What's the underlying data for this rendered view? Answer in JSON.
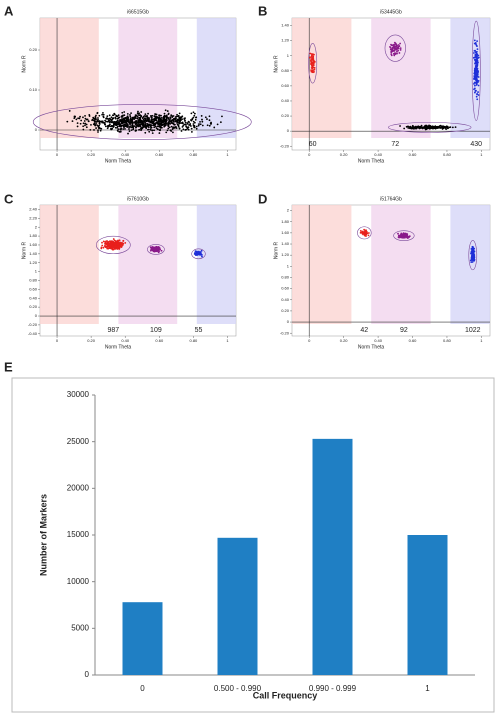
{
  "chart_data": [
    {
      "type": "scatter",
      "panel": "A",
      "title": "i66515Gb",
      "x_label": "Norm Theta",
      "y_label": "Norm R",
      "xlim": [
        -0.1,
        1.05
      ],
      "xticks": [
        0,
        {
          "value": 0.2,
          "label": "0.20"
        },
        {
          "value": 0.4,
          "label": "0.40"
        },
        {
          "value": 0.6,
          "label": "0.60"
        },
        {
          "value": 0.8,
          "label": "0.80"
        },
        1
      ],
      "ylim": [
        -0.05,
        0.28
      ],
      "yticks": [
        0,
        {
          "value": 0.1,
          "label": "0.10"
        },
        {
          "value": 0.2,
          "label": "0.20"
        }
      ],
      "clusters": [
        {
          "x": 0.5,
          "y": 0.02,
          "color": "#000000"
        }
      ]
    },
    {
      "type": "scatter",
      "panel": "B",
      "title": "i53445Gb",
      "x_label": "Norm Theta",
      "y_label": "Norm R",
      "xlim": [
        -0.1,
        1.05
      ],
      "xticks": [
        0,
        {
          "value": 0.2,
          "label": "0.20"
        },
        {
          "value": 0.4,
          "label": "0.40"
        },
        {
          "value": 0.6,
          "label": "0.60"
        },
        {
          "value": 0.8,
          "label": "0.80"
        },
        1
      ],
      "ylim": [
        -0.25,
        1.5
      ],
      "yticks": [
        {
          "value": -0.2,
          "label": "-0.20"
        },
        0,
        {
          "value": 0.2,
          "label": "0.20"
        },
        {
          "value": 0.4,
          "label": "0.40"
        },
        {
          "value": 0.6,
          "label": "0.60"
        },
        {
          "value": 0.8,
          "label": "0.80"
        },
        1,
        {
          "value": 1.2,
          "label": "1.20"
        },
        {
          "value": 1.4,
          "label": "1.40"
        }
      ],
      "clusters": [
        {
          "x": 0.02,
          "y": 0.9,
          "count": 60,
          "color": "#e8201c"
        },
        {
          "x": 0.5,
          "y": 1.1,
          "count": 72,
          "color": "#8a1a8a"
        },
        {
          "x": 0.97,
          "y": 0.8,
          "count": 430,
          "color": "#1f2fd8"
        },
        {
          "x": 0.7,
          "y": 0.05,
          "color": "#000000"
        }
      ]
    },
    {
      "type": "scatter",
      "panel": "C",
      "title": "i57610Gb",
      "x_label": "Norm Theta",
      "y_label": "Norm R",
      "xlim": [
        -0.1,
        1.05
      ],
      "xticks": [
        0,
        {
          "value": 0.2,
          "label": "0.20"
        },
        {
          "value": 0.4,
          "label": "0.40"
        },
        {
          "value": 0.6,
          "label": "0.60"
        },
        {
          "value": 0.8,
          "label": "0.80"
        },
        1
      ],
      "ylim": [
        -0.45,
        2.5
      ],
      "yticks": [
        {
          "value": -0.4,
          "label": "-0.40"
        },
        {
          "value": -0.2,
          "label": "-0.20"
        },
        0,
        {
          "value": 0.2,
          "label": "0.20"
        },
        {
          "value": 0.4,
          "label": "0.40"
        },
        {
          "value": 0.6,
          "label": "0.60"
        },
        {
          "value": 0.8,
          "label": "0.80"
        },
        1,
        {
          "value": 1.2,
          "label": "1.20"
        },
        {
          "value": 1.4,
          "label": "1.40"
        },
        {
          "value": 1.6,
          "label": "1.60"
        },
        {
          "value": 1.8,
          "label": "1.80"
        },
        2,
        {
          "value": 2.2,
          "label": "2.20"
        },
        {
          "value": 2.4,
          "label": "2.40"
        }
      ],
      "clusters": [
        {
          "x": 0.33,
          "y": 1.6,
          "count": 987,
          "color": "#e8201c"
        },
        {
          "x": 0.58,
          "y": 1.5,
          "count": 109,
          "color": "#8a1a8a"
        },
        {
          "x": 0.83,
          "y": 1.4,
          "count": 55,
          "color": "#1f2fd8"
        }
      ]
    },
    {
      "type": "scatter",
      "panel": "D",
      "title": "i51764Gb",
      "x_label": "Norm Theta",
      "y_label": "Norm R",
      "xlim": [
        -0.1,
        1.05
      ],
      "xticks": [
        0,
        {
          "value": 0.2,
          "label": "0.20"
        },
        {
          "value": 0.4,
          "label": "0.40"
        },
        {
          "value": 0.6,
          "label": "0.60"
        },
        {
          "value": 0.8,
          "label": "0.80"
        },
        1
      ],
      "ylim": [
        -0.25,
        2.1
      ],
      "yticks": [
        {
          "value": -0.2,
          "label": "-0.20"
        },
        0,
        {
          "value": 0.2,
          "label": "0.20"
        },
        {
          "value": 0.4,
          "label": "0.40"
        },
        {
          "value": 0.6,
          "label": "0.60"
        },
        {
          "value": 0.8,
          "label": "0.80"
        },
        1,
        {
          "value": 1.2,
          "label": "1.20"
        },
        {
          "value": 1.4,
          "label": "1.40"
        },
        {
          "value": 1.6,
          "label": "1.60"
        },
        {
          "value": 1.8,
          "label": "1.80"
        },
        2
      ],
      "clusters": [
        {
          "x": 0.32,
          "y": 1.6,
          "count": 42,
          "color": "#e8201c"
        },
        {
          "x": 0.55,
          "y": 1.55,
          "count": 92,
          "color": "#8a1a8a"
        },
        {
          "x": 0.95,
          "y": 1.2,
          "count": 1022,
          "color": "#1f2fd8"
        }
      ]
    },
    {
      "type": "bar",
      "panel": "E",
      "x_label": "Call Frequency",
      "y_label": "Number of Markers",
      "categories": [
        "0",
        "0.500 - 0.990",
        "0.990 - 0.999",
        "1"
      ],
      "values": [
        7800,
        14700,
        25300,
        15000
      ],
      "color": "#1f7fc4",
      "ylim": [
        0,
        30000
      ],
      "yticks": [
        0,
        5000,
        10000,
        15000,
        20000,
        25000,
        30000
      ]
    }
  ]
}
